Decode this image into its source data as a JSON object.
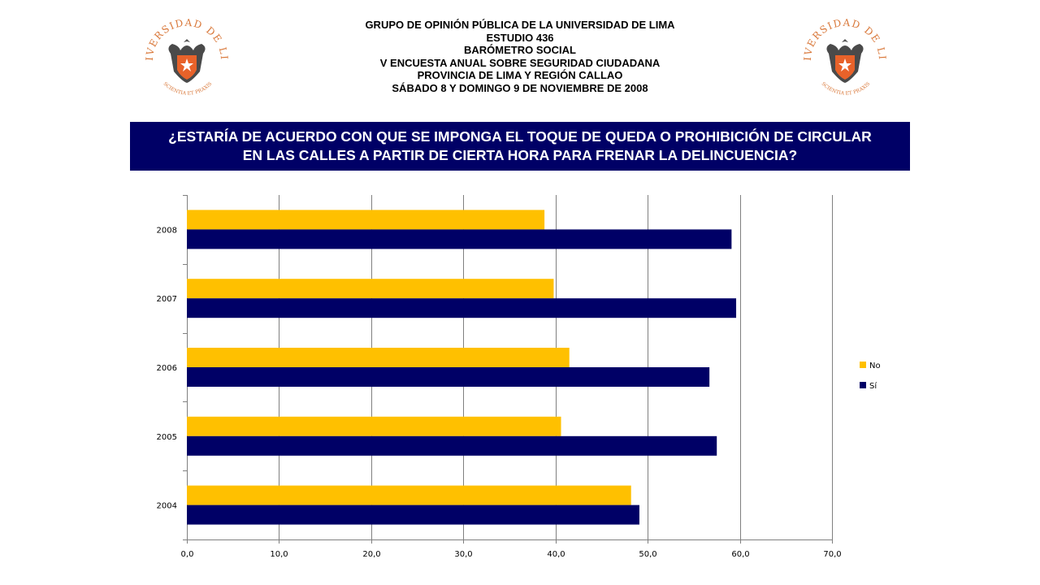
{
  "header": {
    "lines": [
      "GRUPO DE OPINIÓN PÚBLICA DE LA UNIVERSIDAD DE LIMA",
      "ESTUDIO 436",
      "BARÓMETRO SOCIAL",
      "V ENCUESTA ANUAL SOBRE SEGURIDAD CIUDADANA",
      "PROVINCIA DE LIMA Y REGIÓN CALLAO",
      "SÁBADO 8 Y DOMINGO 9 DE NOVIEMBRE DE 2008"
    ]
  },
  "logo": {
    "arc_top": "UNIVERSIDAD DE LIMA",
    "arc_bottom": "SCIENTIA ET PRAXIS"
  },
  "question": {
    "line1": "¿ESTARÍA DE ACUERDO CON QUE SE IMPONGA EL TOQUE DE QUEDA O PROHIBICIÓN DE CIRCULAR",
    "line2": "EN LAS CALLES A PARTIR DE CIERTA HORA PARA FRENAR LA DELINCUENCIA?"
  },
  "colors": {
    "no": "#FFC000",
    "si": "#000066",
    "banner": "#000066",
    "logo_orange": "#D9783A",
    "grid": "#808080"
  },
  "chart_data": {
    "type": "bar",
    "orientation": "horizontal",
    "categories": [
      "2004",
      "2005",
      "2006",
      "2007",
      "2008"
    ],
    "series": [
      {
        "name": "No",
        "values": [
          48.2,
          40.6,
          41.5,
          39.8,
          38.8
        ]
      },
      {
        "name": "Sí",
        "values": [
          49.1,
          57.5,
          56.7,
          59.6,
          59.1
        ]
      }
    ],
    "xlim": [
      0,
      70
    ],
    "xticks": [
      "0,0",
      "10,0",
      "20,0",
      "30,0",
      "40,0",
      "50,0",
      "60,0",
      "70,0"
    ],
    "grid": "vertical",
    "legend_position": "right"
  }
}
